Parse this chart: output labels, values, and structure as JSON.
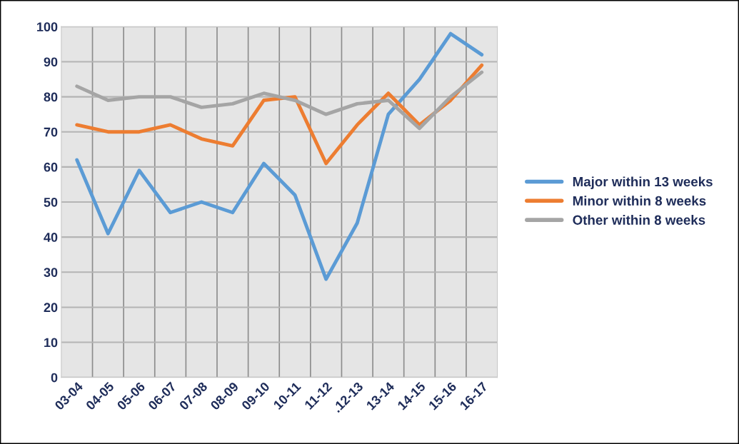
{
  "chart_data": {
    "type": "line",
    "categories": [
      "03-04",
      "04-05",
      "05-06",
      "06-07",
      "07-08",
      "08-09",
      "09-10",
      "10-11",
      "11-12",
      ".12-13",
      "13-14",
      "14-15",
      "15-16",
      "16-17"
    ],
    "series": [
      {
        "name": "Major within 13 weeks",
        "color": "#5b9bd5",
        "values": [
          62,
          41,
          59,
          47,
          50,
          47,
          61,
          52,
          28,
          44,
          75,
          85,
          98,
          92
        ]
      },
      {
        "name": "Minor within 8 weeks",
        "color": "#ed7d31",
        "values": [
          72,
          70,
          70,
          72,
          68,
          66,
          79,
          80,
          61,
          72,
          81,
          72,
          79,
          89
        ]
      },
      {
        "name": "Other within 8 weeks",
        "color": "#a5a5a5",
        "values": [
          83,
          79,
          80,
          80,
          77,
          78,
          81,
          79,
          75,
          78,
          79,
          71,
          80,
          87
        ]
      }
    ],
    "ylim": [
      0,
      100
    ],
    "yticks": [
      0,
      10,
      20,
      30,
      40,
      50,
      60,
      70,
      80,
      90,
      100
    ],
    "grid": true,
    "legend": "right",
    "marker": "none",
    "line_style": "solid"
  }
}
